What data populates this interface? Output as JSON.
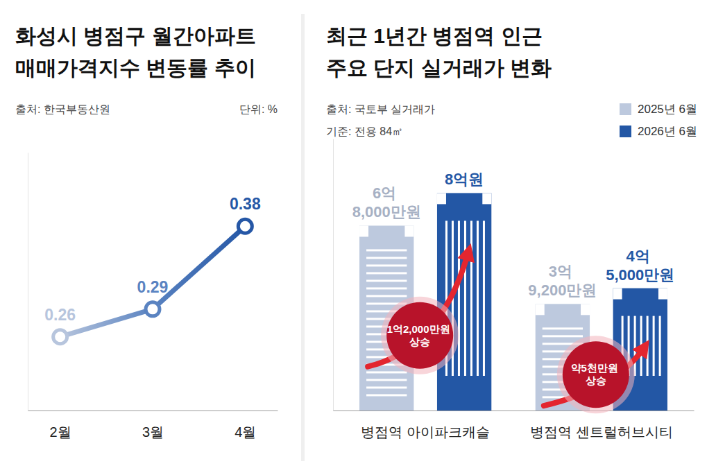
{
  "chart_data": [
    {
      "type": "line",
      "title": "화성시 병점구 월간아파트 매매가격지수 변동률 추이",
      "source": "출처: 한국부동산원",
      "unit": "단위: %",
      "categories": [
        "2월",
        "3월",
        "4월"
      ],
      "values": [
        0.26,
        0.29,
        0.38
      ],
      "colors": [
        "#b7c5dd",
        "#5a83c1",
        "#2557a6"
      ],
      "ylim": [
        0.18,
        0.46
      ],
      "tick_labels": "x",
      "data_labels": true,
      "marker": "circle",
      "grid": false
    },
    {
      "type": "bar",
      "title": "최근 1년간 병점역 인근 주요 단지 실거래가 변화",
      "source": "출처: 국토부 실거래가",
      "basis": "기준: 전용 84㎡",
      "categories": [
        "병점역 아이파크캐슬",
        "병점역 센트럴허브시티"
      ],
      "series": [
        {
          "name": "2025년 6월",
          "color": "#bdc9de",
          "values": [
            68000,
            39200
          ],
          "value_labels": [
            "6억 8,000만원",
            "3억 9,200만원"
          ]
        },
        {
          "name": "2026년 6월",
          "color": "#2357a5",
          "values": [
            80000,
            45000
          ],
          "value_labels": [
            "8억원",
            "4억 5,000만원"
          ]
        }
      ],
      "annotations": [
        "1억2,000만원 상승",
        "약5천만원 상승"
      ],
      "ylim": [
        0,
        100000
      ],
      "tick_labels": "x",
      "data_labels": true,
      "legend": "top-right",
      "grid": false
    }
  ]
}
